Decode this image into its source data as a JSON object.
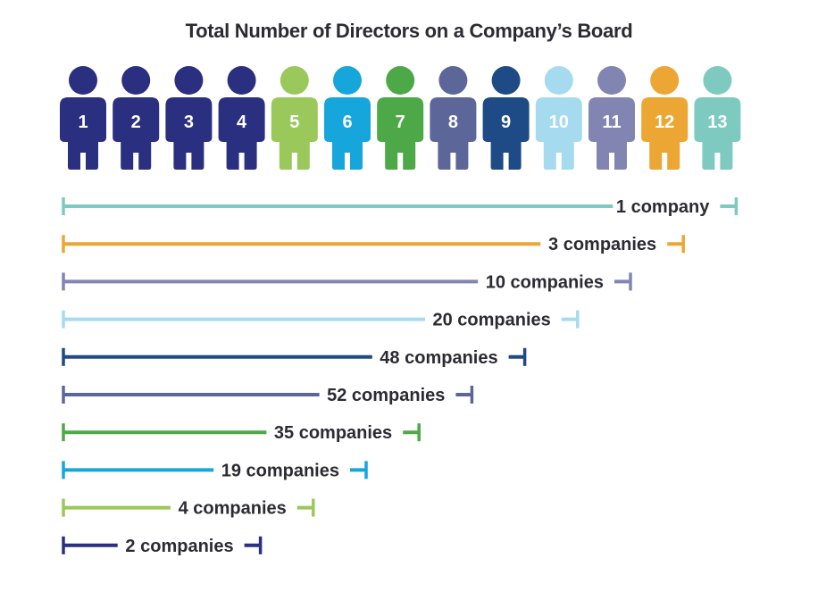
{
  "chart_data": {
    "type": "bar",
    "title": "Total Number of Directors on a Company’s Board",
    "xlabel": "",
    "ylabel": "",
    "grid": false,
    "x_unit_range": [
      1,
      13
    ],
    "categories": [
      "1",
      "2",
      "3",
      "4",
      "5",
      "6",
      "7",
      "8",
      "9",
      "10",
      "11",
      "12",
      "13"
    ],
    "category_colors": [
      "#2b2f80",
      "#2b2f80",
      "#2b2f80",
      "#2b2f80",
      "#9bc85b",
      "#16a6dc",
      "#4da848",
      "#5d6699",
      "#1e4b85",
      "#a6dbef",
      "#8285b1",
      "#eca634",
      "#7ecac1"
    ],
    "bars": [
      {
        "directors": 13,
        "label": "1 company",
        "value": 1,
        "color": "#7ecac1"
      },
      {
        "directors": 12,
        "label": "3 companies",
        "value": 3,
        "color": "#eca634"
      },
      {
        "directors": 11,
        "label": "10 companies",
        "value": 10,
        "color": "#8285b1"
      },
      {
        "directors": 10,
        "label": "20 companies",
        "value": 20,
        "color": "#a6dbef"
      },
      {
        "directors": 9,
        "label": "48 companies",
        "value": 48,
        "color": "#1e4b85"
      },
      {
        "directors": 8,
        "label": "52 companies",
        "value": 52,
        "color": "#5d6699"
      },
      {
        "directors": 7,
        "label": "35 companies",
        "value": 35,
        "color": "#4da848"
      },
      {
        "directors": 6,
        "label": "19 companies",
        "value": 19,
        "color": "#16a6dc"
      },
      {
        "directors": 5,
        "label": "4 companies",
        "value": 4,
        "color": "#9bc85b"
      },
      {
        "directors": 4,
        "label": "2 companies",
        "value": 2,
        "color": "#2b2f80"
      }
    ]
  }
}
